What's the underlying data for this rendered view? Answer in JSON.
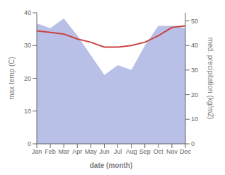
{
  "chart_data": {
    "type": "line",
    "xlabel": "date (month)",
    "ylabel": "max temp (C)",
    "y2label": "med. precipitation (kg/m2)",
    "categories": [
      "Jan",
      "Feb",
      "Mar",
      "Apr",
      "May",
      "Jun",
      "Jul",
      "Aug",
      "Sep",
      "Oct",
      "Nov",
      "Dec"
    ],
    "series": [
      {
        "type": "area",
        "axis": "y2",
        "color": "#b8c0e8",
        "values": [
          49,
          47,
          51,
          44,
          36,
          28,
          32,
          30,
          40,
          48,
          48,
          47
        ]
      },
      {
        "type": "line",
        "color": "#cc4444",
        "values": [
          34.5,
          34.0,
          33.5,
          32.0,
          31.0,
          29.5,
          29.5,
          30.0,
          31.0,
          33.0,
          35.5,
          36.0
        ]
      }
    ],
    "ylim": [
      0,
      40
    ],
    "yticks": [
      0,
      10,
      20,
      30,
      40
    ],
    "y2lim": [
      0,
      53.3
    ],
    "y2ticks": [
      0,
      10,
      20,
      30,
      40,
      50
    ],
    "grid": false
  }
}
